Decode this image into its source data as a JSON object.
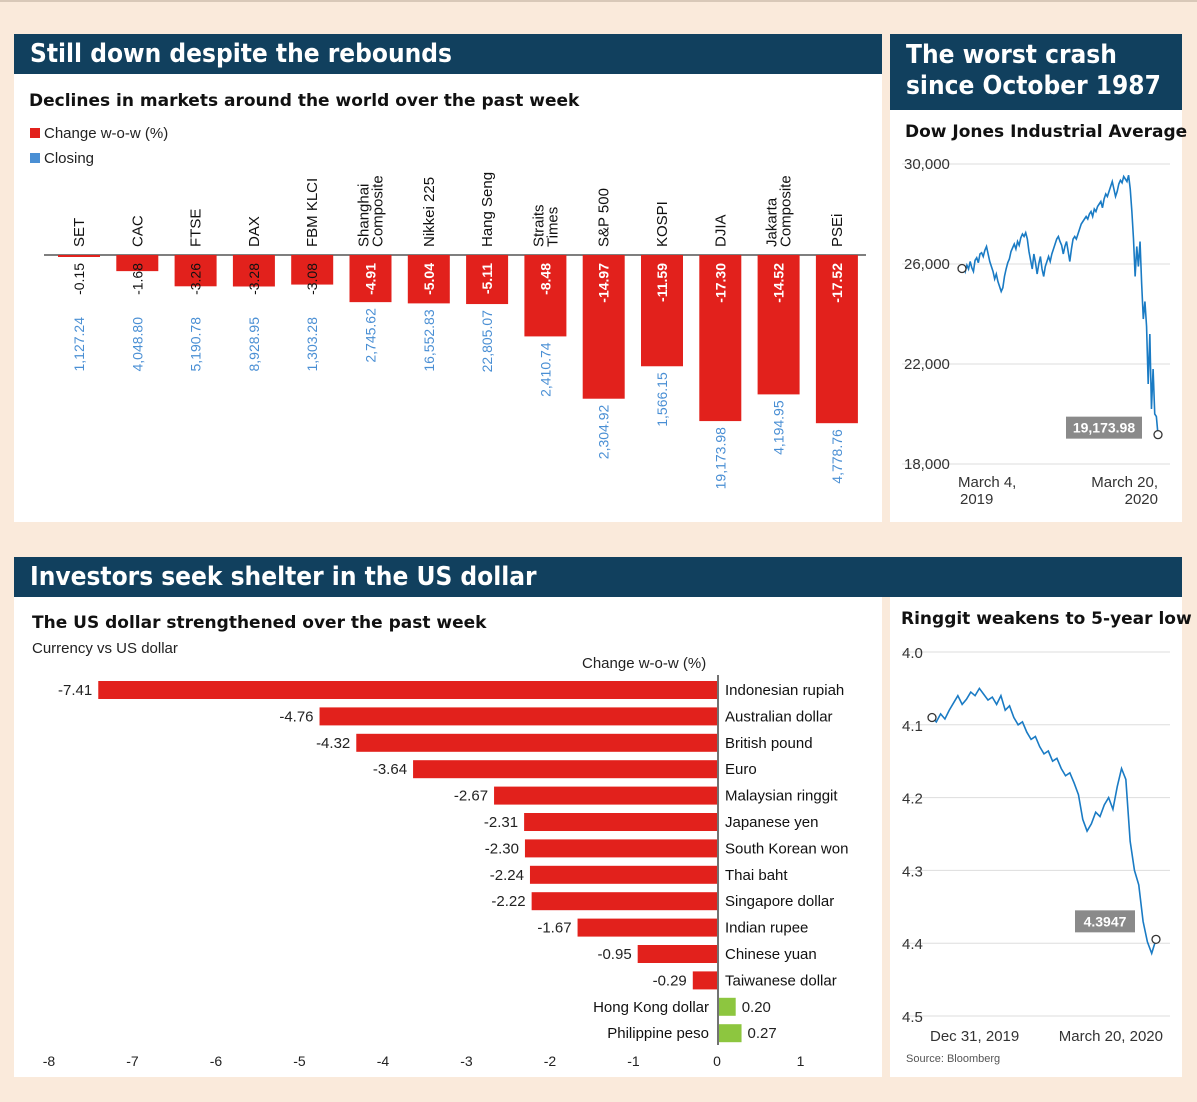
{
  "colors": {
    "header_bg": "#11405e",
    "change_red": "#e2211c",
    "closing_blue": "#4a8fd4",
    "positive_green": "#8dc63f",
    "line_blue": "#1a7bc4",
    "value_box": "#8a8a8a"
  },
  "top_left": {
    "header": "Still down despite the rebounds",
    "subtitle": "Declines in markets around the world over the past week",
    "legend": {
      "change": "Change w-o-w (%)",
      "closing": "Closing"
    }
  },
  "top_right": {
    "header_line1": "The worst crash",
    "header_line2": "since October 1987",
    "subtitle": "Dow Jones Industrial Average",
    "value_label": "19,173.98",
    "x_start_line1": "March 4,",
    "x_start_line2": "2019",
    "x_end_line1": "March 20,",
    "x_end_line2": "2020"
  },
  "bottom": {
    "header": "Investors seek shelter in the US dollar",
    "subtitle": "The US dollar strengthened over the past week",
    "caption": "Currency vs US dollar",
    "axis_title": "Change w-o-w (%)"
  },
  "bottom_right": {
    "subtitle": "Ringgit weakens to 5-year low",
    "value_label": "4.3947",
    "x_start": "Dec 31, 2019",
    "x_end": "March 20, 2020",
    "source": "Source: Bloomberg"
  },
  "chart_data": [
    {
      "type": "bar",
      "title": "Declines in markets around the world over the past week",
      "categories": [
        {
          "label": "SET",
          "label2": ""
        },
        {
          "label": "CAC",
          "label2": ""
        },
        {
          "label": "FTSE",
          "label2": ""
        },
        {
          "label": "DAX",
          "label2": ""
        },
        {
          "label": "FBM KLCI",
          "label2": ""
        },
        {
          "label": "Shanghai",
          "label2": "Composite"
        },
        {
          "label": "Nikkei 225",
          "label2": ""
        },
        {
          "label": "Hang Seng",
          "label2": ""
        },
        {
          "label": "Straits",
          "label2": "Times"
        },
        {
          "label": "S&P 500",
          "label2": ""
        },
        {
          "label": "KOSPI",
          "label2": ""
        },
        {
          "label": "DJIA",
          "label2": ""
        },
        {
          "label": "Jakarta",
          "label2": "Composite"
        },
        {
          "label": "PSEi",
          "label2": ""
        }
      ],
      "series": [
        {
          "name": "Change w-o-w (%)",
          "values": [
            -0.15,
            -1.68,
            -3.26,
            -3.28,
            -3.08,
            -4.91,
            -5.04,
            -5.11,
            -8.48,
            -14.97,
            -11.59,
            -17.3,
            -14.52,
            -17.52
          ],
          "labels": [
            "-0.15",
            "-1.68",
            "-3.26",
            "-3.28",
            "-3.08",
            "-4.91",
            "-5.04",
            "-5.11",
            "-8.48",
            "-14.97",
            "-11.59",
            "-17.30",
            "-14.52",
            "-17.52"
          ]
        },
        {
          "name": "Closing",
          "labels": [
            "1,127.24",
            "4,048.80",
            "5,190.78",
            "8,928.95",
            "1,303.28",
            "2,745.62",
            "16,552.83",
            "22,805.07",
            "2,410.74",
            "2,304.92",
            "1,566.15",
            "19,173.98",
            "4,194.95",
            "4,778.76"
          ]
        }
      ],
      "legend": "top-left"
    },
    {
      "type": "line",
      "title": "Dow Jones Industrial Average",
      "ylim": [
        18000,
        30000
      ],
      "yticks": [
        "30,000",
        "26,000",
        "22,000",
        "18,000"
      ],
      "ytick_values": [
        30000,
        26000,
        22000,
        18000
      ],
      "x_range": [
        "2019-03-04",
        "2020-03-20"
      ],
      "values": [
        25820,
        25900,
        25700,
        25950,
        25800,
        26100,
        25850,
        25700,
        26150,
        26250,
        26050,
        26400,
        26450,
        26300,
        26550,
        26700,
        26400,
        26100,
        25900,
        25700,
        25400,
        25600,
        25300,
        25100,
        24900,
        25050,
        25500,
        25800,
        26050,
        26200,
        26500,
        26650,
        26800,
        26600,
        26900,
        26750,
        27050,
        27200,
        27100,
        27250,
        27000,
        26500,
        26150,
        25800,
        26400,
        26050,
        25600,
        26000,
        26300,
        25800,
        25500,
        25900,
        26100,
        26300,
        26100,
        26400,
        26600,
        26800,
        27000,
        27100,
        26900,
        26750,
        26400,
        26700,
        26900,
        26500,
        26100,
        26600,
        27000,
        27100,
        27000,
        27200,
        27400,
        27600,
        27700,
        27800,
        27900,
        27800,
        28000,
        28100,
        27900,
        28200,
        28100,
        28300,
        28400,
        28500,
        28250,
        28600,
        28800,
        28700,
        28900,
        29100,
        29300,
        29000,
        28700,
        28900,
        29200,
        29350,
        29250,
        29500,
        29400,
        29300,
        29550,
        29000,
        28100,
        27000,
        25500,
        26700,
        25900,
        26900,
        25200,
        23800,
        24500,
        23500,
        21200,
        23200,
        20200,
        21800,
        20000,
        19900,
        19174
      ]
    },
    {
      "type": "bar",
      "orientation": "horizontal",
      "title": "The US dollar strengthened over the past week",
      "xlabel": "Change w-o-w (%)",
      "xlim": [
        -8,
        1
      ],
      "xticks": [
        "-8",
        "-7",
        "-6",
        "-5",
        "-4",
        "-3",
        "-2",
        "-1",
        "0",
        "1"
      ],
      "categories": [
        "Indonesian rupiah",
        "Australian dollar",
        "British pound",
        "Euro",
        "Malaysian ringgit",
        "Japanese yen",
        "South Korean won",
        "Thai baht",
        "Singapore dollar",
        "Indian rupee",
        "Chinese yuan",
        "Taiwanese dollar",
        "Hong Kong dollar",
        "Philippine peso"
      ],
      "values": [
        -7.41,
        -4.76,
        -4.32,
        -3.64,
        -2.67,
        -2.31,
        -2.3,
        -2.24,
        -2.22,
        -1.67,
        -0.95,
        -0.29,
        0.2,
        0.27
      ],
      "labels": [
        "-7.41",
        "-4.76",
        "-4.32",
        "-3.64",
        "-2.67",
        "-2.31",
        "-2.30",
        "-2.24",
        "-2.22",
        "-1.67",
        "-0.95",
        "-0.29",
        "0.20",
        "0.27"
      ]
    },
    {
      "type": "line",
      "title": "Ringgit weakens to 5-year low",
      "ylim": [
        4.0,
        4.5
      ],
      "y_inverted": true,
      "yticks": [
        "4.0",
        "4.1",
        "4.2",
        "4.3",
        "4.4",
        "4.5"
      ],
      "ytick_values": [
        4.0,
        4.1,
        4.2,
        4.3,
        4.4,
        4.5
      ],
      "x_range": [
        "2019-12-31",
        "2020-03-20"
      ],
      "values": [
        4.09,
        4.096,
        4.085,
        4.092,
        4.08,
        4.07,
        4.06,
        4.072,
        4.065,
        4.055,
        4.06,
        4.05,
        4.058,
        4.066,
        4.062,
        4.072,
        4.06,
        4.08,
        4.074,
        4.09,
        4.1,
        4.096,
        4.11,
        4.12,
        4.116,
        4.13,
        4.14,
        4.136,
        4.15,
        4.146,
        4.16,
        4.17,
        4.166,
        4.18,
        4.196,
        4.23,
        4.246,
        4.236,
        4.22,
        4.226,
        4.21,
        4.2,
        4.216,
        4.185,
        4.16,
        4.175,
        4.26,
        4.3,
        4.32,
        4.37,
        4.398,
        4.414,
        4.3947
      ]
    }
  ]
}
